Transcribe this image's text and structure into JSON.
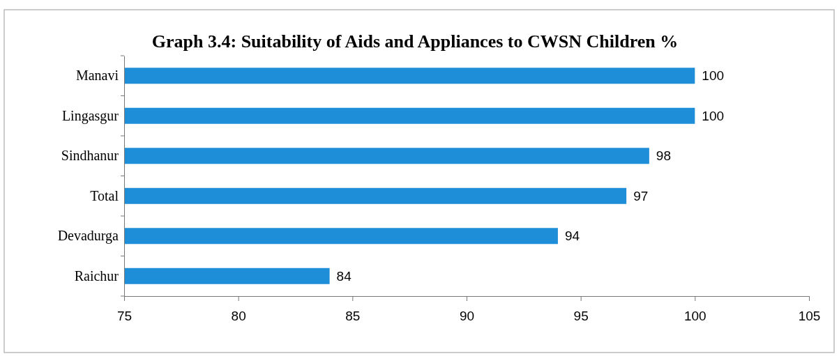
{
  "chart_data": {
    "type": "bar",
    "orientation": "horizontal",
    "title": "Graph 3.4: Suitability of Aids and Appliances to  CWSN Children %",
    "categories": [
      "Manavi",
      "Lingasgur",
      "Sindhanur",
      "Total",
      "Devadurga",
      "Raichur"
    ],
    "values": [
      100,
      100,
      98,
      97,
      94,
      84
    ],
    "color": "#1f8ed8",
    "xlim": [
      75,
      105
    ],
    "xticks": [
      75,
      80,
      85,
      90,
      95,
      100,
      105
    ],
    "data_labels": true
  }
}
